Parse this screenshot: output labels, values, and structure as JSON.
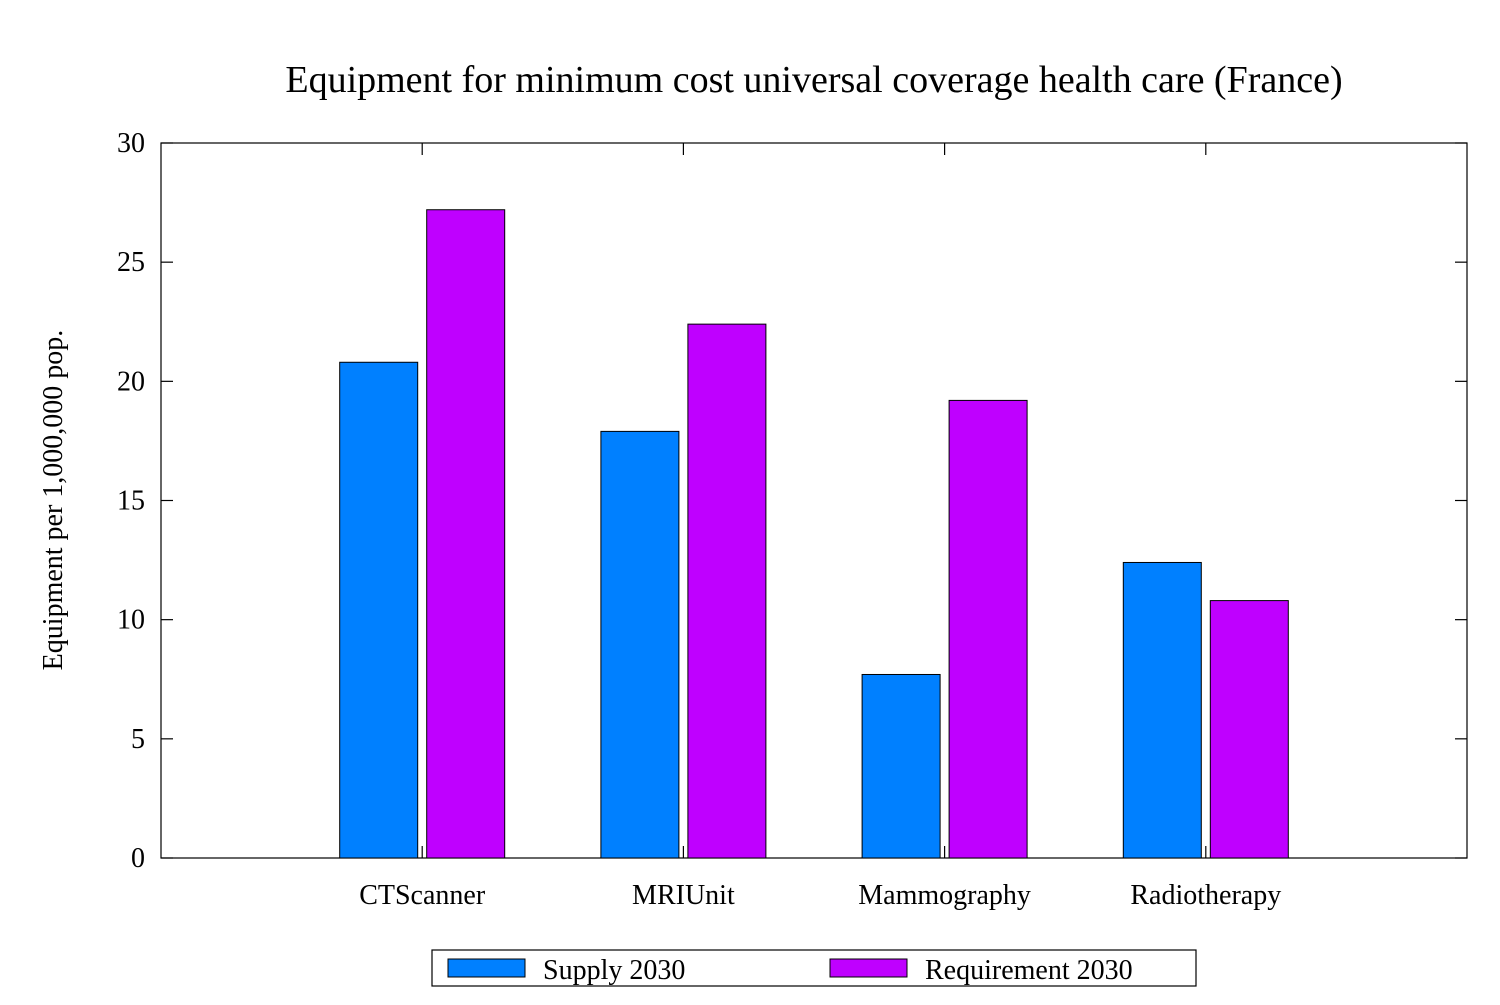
{
  "chart_data": {
    "type": "bar",
    "title": "Equipment for minimum cost universal coverage health care (France)",
    "xlabel": "",
    "ylabel": "Equipment per 1,000,000 pop.",
    "categories": [
      "CTScanner",
      "MRIUnit",
      "Mammography",
      "Radiotherapy"
    ],
    "series": [
      {
        "name": "Supply 2030",
        "values": [
          20.8,
          17.9,
          7.7,
          12.4
        ],
        "color": "#0080ff"
      },
      {
        "name": "Requirement 2030",
        "values": [
          27.2,
          22.4,
          19.2,
          10.8
        ],
        "color": "#bf00ff"
      }
    ],
    "ylim": [
      0,
      30
    ],
    "yticks": [
      "0",
      "5",
      "10",
      "15",
      "20",
      "25",
      "30"
    ],
    "grid": false,
    "legend_position": "bottom"
  }
}
